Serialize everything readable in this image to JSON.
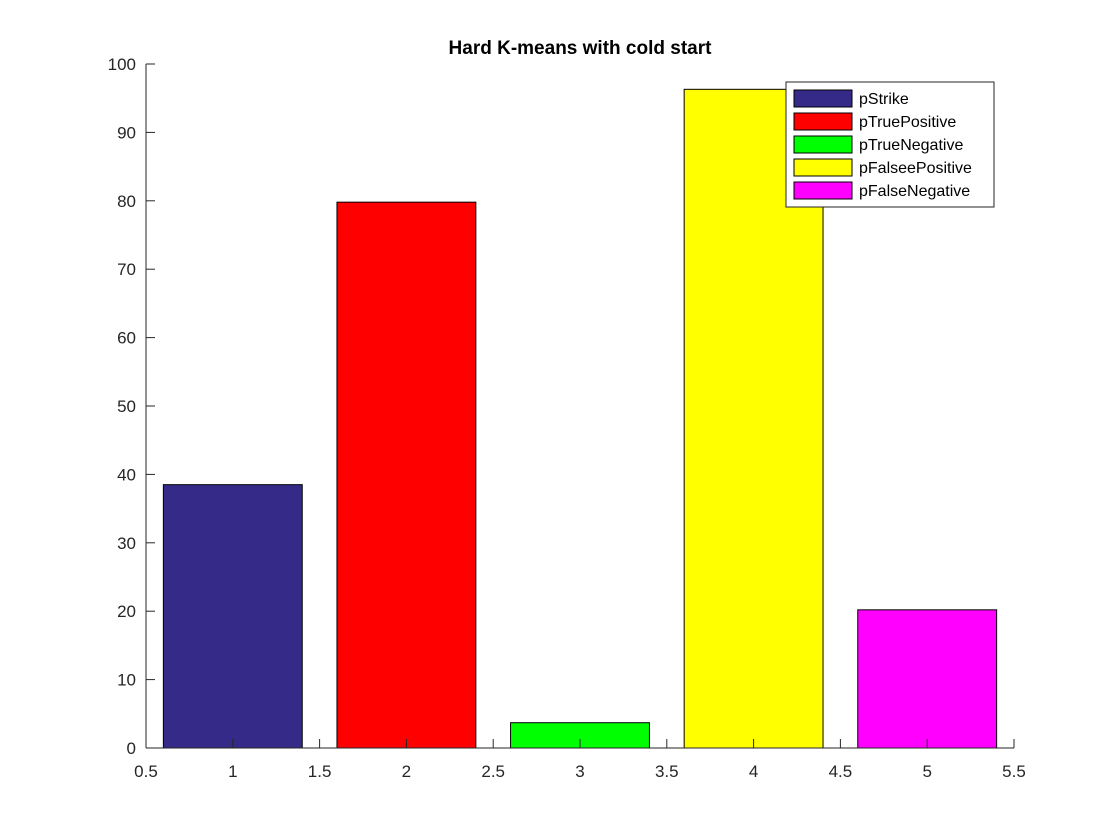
{
  "chart_data": {
    "type": "bar",
    "title": "Hard K-means with cold start",
    "xlabel": "",
    "ylabel": "",
    "x": [
      1,
      2,
      3,
      4,
      5
    ],
    "bar_width": 0.8,
    "xlim": [
      0.5,
      5.5
    ],
    "ylim": [
      0,
      100
    ],
    "xticks": [
      0.5,
      1,
      1.5,
      2,
      2.5,
      3,
      3.5,
      4,
      4.5,
      5,
      5.5
    ],
    "xtick_labels": [
      "0.5",
      "1",
      "1.5",
      "2",
      "2.5",
      "3",
      "3.5",
      "4",
      "4.5",
      "5",
      "5.5"
    ],
    "yticks": [
      0,
      10,
      20,
      30,
      40,
      50,
      60,
      70,
      80,
      90,
      100
    ],
    "ytick_labels": [
      "0",
      "10",
      "20",
      "30",
      "40",
      "50",
      "60",
      "70",
      "80",
      "90",
      "100"
    ],
    "grid": false,
    "legend_position": "top-right",
    "series": [
      {
        "name": "pStrike",
        "value": 38.5,
        "color": "#352a87"
      },
      {
        "name": "pTruePositive",
        "value": 79.8,
        "color": "#ff0000"
      },
      {
        "name": "pTrueNegative",
        "value": 3.7,
        "color": "#00ff00"
      },
      {
        "name": "pFalseePositive",
        "value": 96.3,
        "color": "#ffff00"
      },
      {
        "name": "pFalseNegative",
        "value": 20.2,
        "color": "#ff00ff"
      }
    ]
  }
}
